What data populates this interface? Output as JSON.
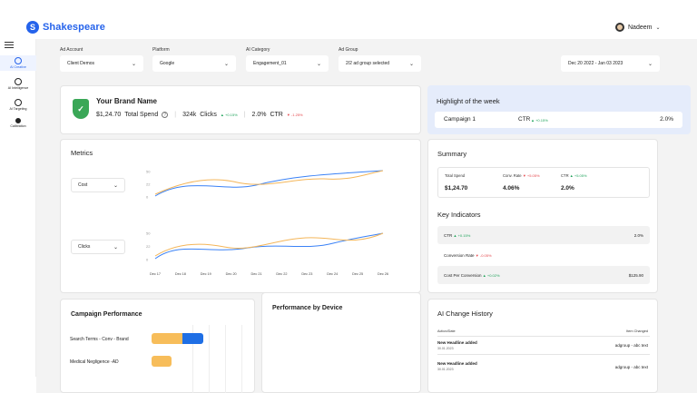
{
  "app": {
    "name": "Shakespeare",
    "logo_glyph": "S"
  },
  "user": {
    "name": "Nadeem",
    "chevron": "⌄"
  },
  "sidebar": {
    "items": [
      {
        "label": "AI Creative",
        "active": true
      },
      {
        "label": "AI Intelligence",
        "active": false
      },
      {
        "label": "AI Targeting",
        "active": false
      },
      {
        "label": "Calibration",
        "active": false
      }
    ]
  },
  "filters": {
    "ad_account": {
      "label": "Ad Account",
      "value": "Client Demos"
    },
    "platform": {
      "label": "Platform",
      "value": "Google"
    },
    "ai_category": {
      "label": "AI Category",
      "value": "Engagement_01"
    },
    "ad_group": {
      "label": "Ad Group",
      "value": "2/2 ad group selected"
    },
    "date_range": {
      "value": "Dec 20 2022 - Jan 03 2023"
    },
    "chevron": "⌄"
  },
  "brand": {
    "name": "Your Brand Name",
    "total_spend_value": "$1,24.70",
    "total_spend_label": "Total Spend",
    "help_icon": "?",
    "clicks_value": "324k",
    "clicks_label": "Clicks",
    "clicks_change": "▲ +0.15%",
    "ctr_value": "2.0%",
    "ctr_label": "CTR",
    "ctr_change": "▼ -1.25%"
  },
  "highlight": {
    "title": "Highlight of the week",
    "campaign": "Campaign 1",
    "metric": "CTR",
    "change": "▲ +0.15%",
    "value": "2.0%"
  },
  "metrics": {
    "title": "Metrics",
    "select_top": "Cost",
    "select_bottom": "Clicks",
    "yticks_top": [
      "50",
      "22",
      "0"
    ],
    "yticks_bottom": [
      "50",
      "22",
      "0"
    ],
    "xticks": [
      "Dec 17",
      "Dec 18",
      "Dec 19",
      "Dec 20",
      "Dec 21",
      "Dec 22",
      "Dec 23",
      "Dec 24",
      "Dec 25",
      "Dec 26"
    ],
    "colors": {
      "series_a": "#3b82f6",
      "series_b": "#f4b65a"
    }
  },
  "summary": {
    "title": "Summary",
    "total_spend_label": "Total Spend",
    "total_spend_value": "$1,24.70",
    "conv_rate_label": "Conv. Rate",
    "conv_rate_change": "▼ +5.05%",
    "conv_rate_value": "4.06%",
    "ctr_label": "CTR",
    "ctr_change": "▲ +5.05%",
    "ctr_value": "2.0%"
  },
  "key_indicators": {
    "title": "Key Indicators",
    "rows": [
      {
        "label": "CTR",
        "change": "▲ +0.15%",
        "value": "2.0%"
      },
      {
        "label": "Conversion Rate",
        "change": "▼ -0.05%",
        "value": ""
      },
      {
        "label": "Cost Per Conversion",
        "change": "▲ +0.02%",
        "value": "$125.90"
      }
    ]
  },
  "campaign_performance": {
    "title": "Campaign Performance",
    "rows": [
      {
        "label": "Search Terms - Conv - Brand"
      },
      {
        "label": "Medical Negligence -AD"
      }
    ],
    "colors": {
      "primary": "#1f6fe5",
      "secondary": "#f7bd5a"
    }
  },
  "performance_by_device": {
    "title": "Performance by Device"
  },
  "ai_change_history": {
    "title": "AI Change History",
    "col_action": "Action/Date",
    "col_item": "Item Changed",
    "rows": [
      {
        "title": "New Headline added",
        "date": "30.01.2023",
        "item": "adgroup - abc text"
      },
      {
        "title": "New Headline added",
        "date": "30.01.2023",
        "item": "adgroup - abc text"
      }
    ]
  }
}
